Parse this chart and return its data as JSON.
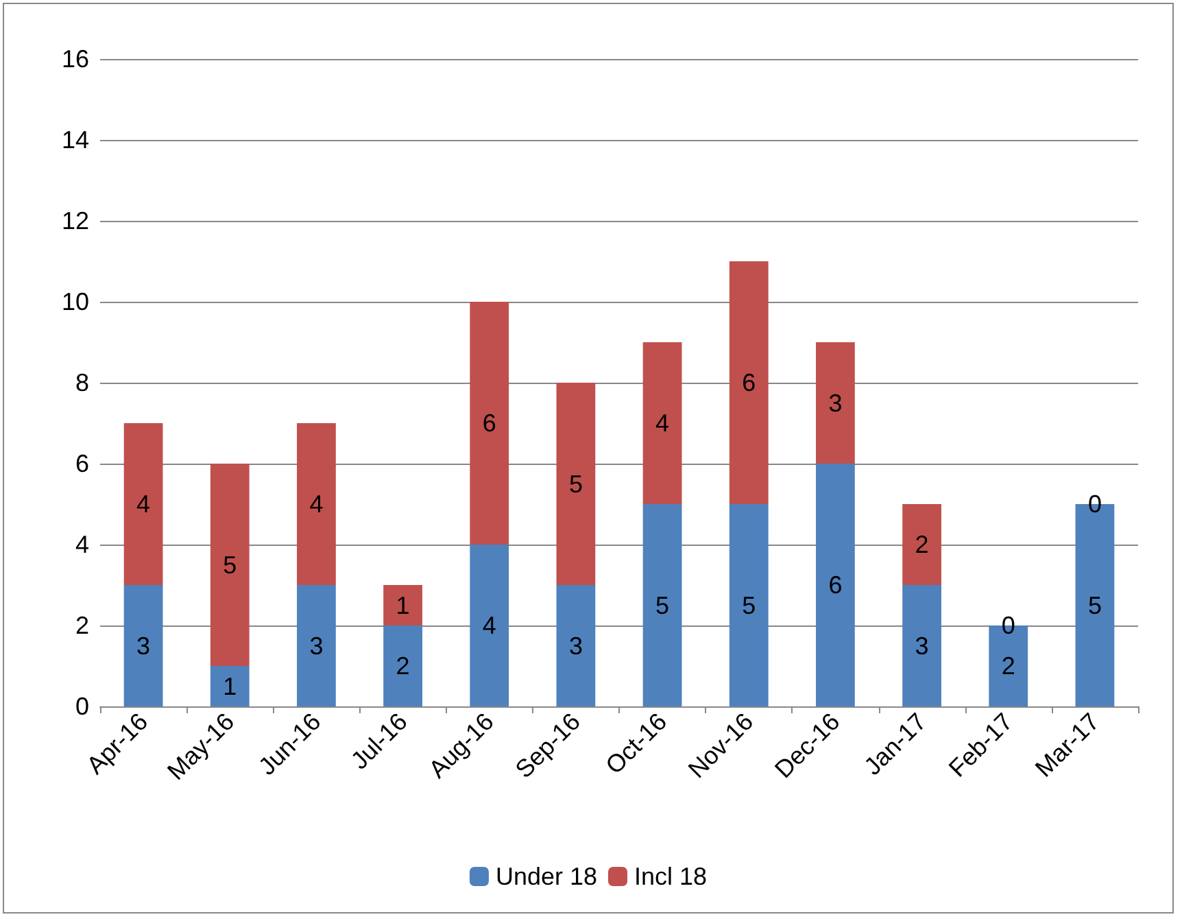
{
  "chart_data": {
    "type": "bar",
    "stacked": true,
    "categories": [
      "Apr-16",
      "May-16",
      "Jun-16",
      "Jul-16",
      "Aug-16",
      "Sep-16",
      "Oct-16",
      "Nov-16",
      "Dec-16",
      "Jan-17",
      "Feb-17",
      "Mar-17"
    ],
    "series": [
      {
        "name": "Under 18",
        "color": "#4f81bd",
        "values": [
          3,
          1,
          3,
          2,
          4,
          3,
          5,
          5,
          6,
          3,
          2,
          5
        ]
      },
      {
        "name": "Incl 18",
        "color": "#c0504d",
        "values": [
          4,
          5,
          4,
          1,
          6,
          5,
          4,
          6,
          3,
          2,
          0,
          0
        ]
      }
    ],
    "ylim": [
      0,
      16
    ],
    "yticks": [
      0,
      2,
      4,
      6,
      8,
      10,
      12,
      14,
      16
    ],
    "grid": "y",
    "legend": "bottom",
    "data_labels": true
  }
}
